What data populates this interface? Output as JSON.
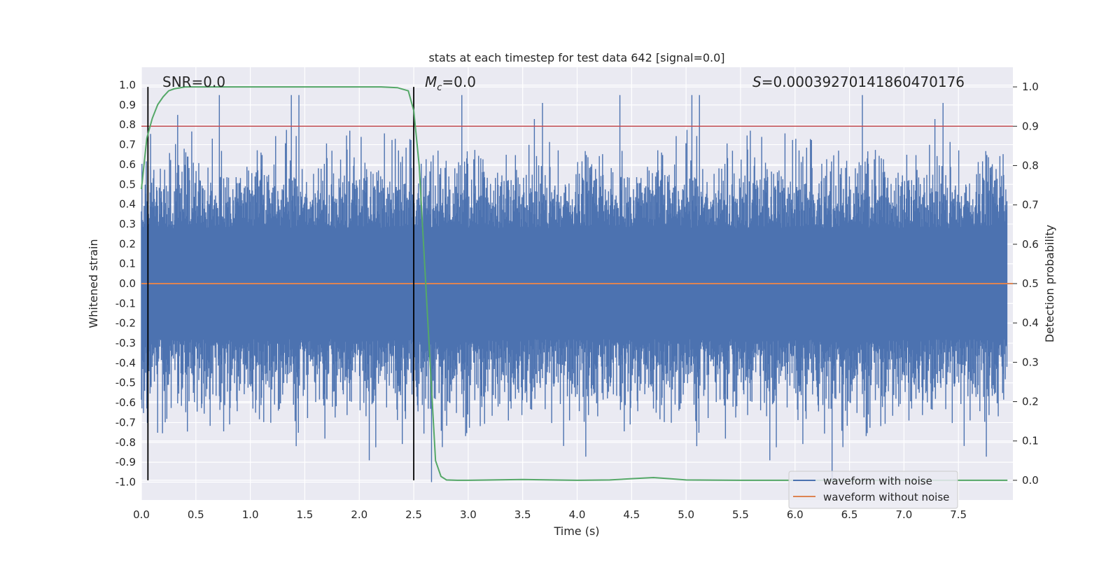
{
  "chart_data": {
    "type": "line",
    "title": "stats at each timestep for test data 642 [signal=0.0]",
    "xlabel": "Time (s)",
    "ylabel": "Whitened strain",
    "y2label": "Detection probability",
    "xlim": [
      0.0,
      8.0
    ],
    "ylim": [
      -1.09,
      1.09
    ],
    "y2lim": [
      -0.05,
      1.05
    ],
    "xticks": [
      "0.0",
      "0.5",
      "1.0",
      "1.5",
      "2.0",
      "2.5",
      "3.0",
      "3.5",
      "4.0",
      "4.5",
      "5.0",
      "5.5",
      "6.0",
      "6.5",
      "7.0",
      "7.5"
    ],
    "yticks": [
      "1.0",
      "0.9",
      "0.8",
      "0.7",
      "0.6",
      "0.5",
      "0.4",
      "0.3",
      "0.2",
      "0.1",
      "0.0",
      "-0.1",
      "-0.2",
      "-0.3",
      "-0.4",
      "-0.5",
      "-0.6",
      "-0.7",
      "-0.8",
      "-0.9",
      "-1.0"
    ],
    "y2ticks": [
      "1.0",
      "0.9",
      "0.8",
      "0.7",
      "0.6",
      "0.5",
      "0.4",
      "0.3",
      "0.2",
      "0.1",
      "0.0"
    ],
    "annotations": {
      "snr": "SNR=0.0",
      "mc_symbol": "M",
      "mc_sub": "c",
      "mc_value": "=0.0",
      "s_symbol": "S",
      "s_value": "=0.00039270141860470176"
    },
    "vlines": [
      0.06,
      2.5
    ],
    "threshold": 0.9,
    "series": [
      {
        "name": "waveform with noise",
        "color": "#4c72b0",
        "kind": "noise",
        "amplitude": 0.5,
        "min": -1.0,
        "max": 0.95,
        "samples": 1600
      },
      {
        "name": "waveform without noise",
        "color": "#dd8452",
        "values": [
          0.0
        ]
      },
      {
        "name": "detection probability",
        "color": "#55a868",
        "axis": "right",
        "x": [
          0.0,
          0.05,
          0.1,
          0.15,
          0.2,
          0.25,
          0.3,
          0.4,
          0.6,
          1.0,
          1.5,
          2.0,
          2.2,
          2.35,
          2.45,
          2.5,
          2.55,
          2.6,
          2.65,
          2.7,
          2.75,
          2.8,
          2.9,
          3.0,
          3.5,
          4.0,
          4.3,
          4.5,
          4.7,
          4.85,
          5.0,
          5.5,
          6.0,
          7.0,
          7.95
        ],
        "values": [
          0.74,
          0.87,
          0.92,
          0.955,
          0.975,
          0.99,
          0.995,
          1.0,
          1.0,
          1.0,
          1.0,
          1.0,
          1.0,
          0.998,
          0.99,
          0.94,
          0.8,
          0.55,
          0.3,
          0.05,
          0.01,
          0.001,
          0.0,
          0.0,
          0.002,
          0.0,
          0.001,
          0.004,
          0.007,
          0.004,
          0.001,
          0.0,
          0.0,
          0.0,
          0.0
        ]
      },
      {
        "name": "threshold",
        "color": "#c44e52",
        "axis": "right",
        "values": [
          0.9
        ]
      }
    ],
    "legend": {
      "position": "lower-right",
      "entries": [
        {
          "label": "waveform with noise",
          "color": "#4c72b0"
        },
        {
          "label": "waveform without noise",
          "color": "#dd8452"
        }
      ]
    }
  }
}
